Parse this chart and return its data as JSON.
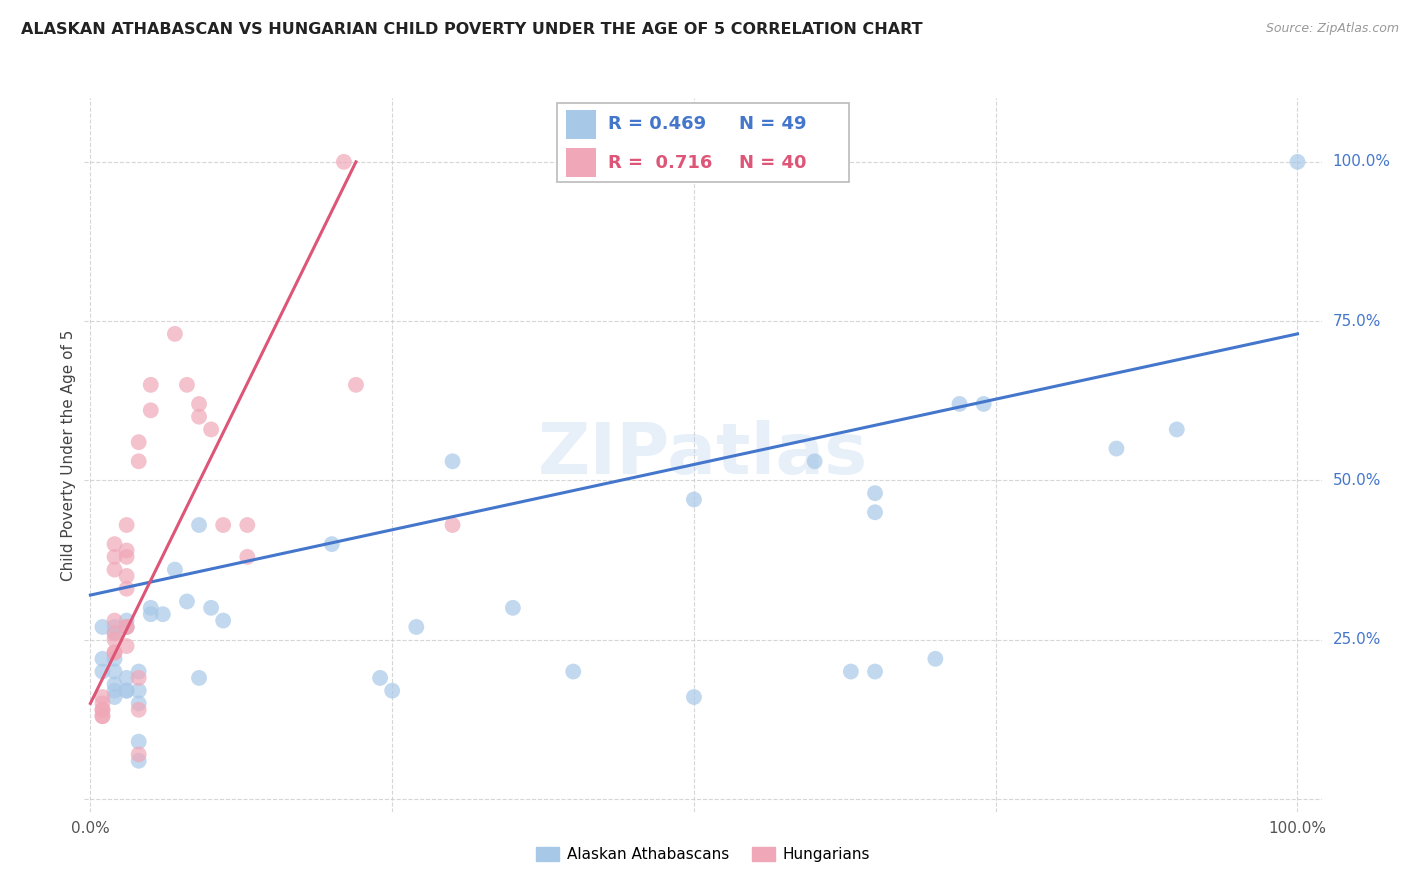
{
  "title": "ALASKAN ATHABASCAN VS HUNGARIAN CHILD POVERTY UNDER THE AGE OF 5 CORRELATION CHART",
  "source": "Source: ZipAtlas.com",
  "ylabel": "Child Poverty Under the Age of 5",
  "blue_R": "0.469",
  "blue_N": "49",
  "pink_R": "0.716",
  "pink_N": "40",
  "blue_color": "#a8c8e8",
  "pink_color": "#f0a8b8",
  "blue_line_color": "#4477cc",
  "pink_line_color": "#dd5577",
  "watermark": "ZIPatlas",
  "blue_points": [
    [
      0.01,
      0.27
    ],
    [
      0.01,
      0.22
    ],
    [
      0.01,
      0.2
    ],
    [
      0.02,
      0.2
    ],
    [
      0.02,
      0.18
    ],
    [
      0.02,
      0.17
    ],
    [
      0.02,
      0.16
    ],
    [
      0.02,
      0.22
    ],
    [
      0.02,
      0.26
    ],
    [
      0.02,
      0.27
    ],
    [
      0.03,
      0.19
    ],
    [
      0.03,
      0.17
    ],
    [
      0.03,
      0.17
    ],
    [
      0.03,
      0.27
    ],
    [
      0.03,
      0.28
    ],
    [
      0.04,
      0.2
    ],
    [
      0.04,
      0.17
    ],
    [
      0.04,
      0.15
    ],
    [
      0.04,
      0.09
    ],
    [
      0.04,
      0.06
    ],
    [
      0.05,
      0.29
    ],
    [
      0.05,
      0.3
    ],
    [
      0.06,
      0.29
    ],
    [
      0.07,
      0.36
    ],
    [
      0.08,
      0.31
    ],
    [
      0.09,
      0.43
    ],
    [
      0.09,
      0.19
    ],
    [
      0.1,
      0.3
    ],
    [
      0.11,
      0.28
    ],
    [
      0.2,
      0.4
    ],
    [
      0.24,
      0.19
    ],
    [
      0.25,
      0.17
    ],
    [
      0.27,
      0.27
    ],
    [
      0.3,
      0.53
    ],
    [
      0.35,
      0.3
    ],
    [
      0.4,
      0.2
    ],
    [
      0.5,
      0.47
    ],
    [
      0.5,
      0.16
    ],
    [
      0.6,
      0.53
    ],
    [
      0.63,
      0.2
    ],
    [
      0.65,
      0.48
    ],
    [
      0.65,
      0.45
    ],
    [
      0.65,
      0.2
    ],
    [
      0.7,
      0.22
    ],
    [
      0.72,
      0.62
    ],
    [
      0.74,
      0.62
    ],
    [
      0.85,
      0.55
    ],
    [
      0.9,
      0.58
    ],
    [
      1.0,
      1.0
    ]
  ],
  "pink_points": [
    [
      0.01,
      0.16
    ],
    [
      0.01,
      0.15
    ],
    [
      0.01,
      0.14
    ],
    [
      0.01,
      0.14
    ],
    [
      0.01,
      0.13
    ],
    [
      0.01,
      0.13
    ],
    [
      0.02,
      0.4
    ],
    [
      0.02,
      0.38
    ],
    [
      0.02,
      0.36
    ],
    [
      0.02,
      0.28
    ],
    [
      0.02,
      0.26
    ],
    [
      0.02,
      0.25
    ],
    [
      0.02,
      0.23
    ],
    [
      0.02,
      0.23
    ],
    [
      0.03,
      0.43
    ],
    [
      0.03,
      0.39
    ],
    [
      0.03,
      0.38
    ],
    [
      0.03,
      0.35
    ],
    [
      0.03,
      0.33
    ],
    [
      0.03,
      0.27
    ],
    [
      0.03,
      0.27
    ],
    [
      0.03,
      0.24
    ],
    [
      0.04,
      0.56
    ],
    [
      0.04,
      0.53
    ],
    [
      0.04,
      0.19
    ],
    [
      0.04,
      0.14
    ],
    [
      0.04,
      0.07
    ],
    [
      0.05,
      0.65
    ],
    [
      0.05,
      0.61
    ],
    [
      0.07,
      0.73
    ],
    [
      0.08,
      0.65
    ],
    [
      0.09,
      0.62
    ],
    [
      0.09,
      0.6
    ],
    [
      0.1,
      0.58
    ],
    [
      0.11,
      0.43
    ],
    [
      0.13,
      0.38
    ],
    [
      0.13,
      0.43
    ],
    [
      0.21,
      1.0
    ],
    [
      0.22,
      0.65
    ],
    [
      0.3,
      0.43
    ]
  ],
  "blue_line_x": [
    0.0,
    1.0
  ],
  "blue_line_y": [
    0.32,
    0.73
  ],
  "pink_line_x": [
    0.0,
    0.22
  ],
  "pink_line_y": [
    0.15,
    1.0
  ],
  "background_color": "#ffffff",
  "grid_color": "#cccccc",
  "ytick_vals": [
    0.0,
    0.25,
    0.5,
    0.75,
    1.0
  ],
  "ytick_labels": [
    "",
    "25.0%",
    "50.0%",
    "75.0%",
    "100.0%"
  ],
  "xtick_vals": [
    0.0,
    0.25,
    0.5,
    0.75,
    1.0
  ],
  "xtick_labels": [
    "0.0%",
    "",
    "",
    "",
    "100.0%"
  ]
}
